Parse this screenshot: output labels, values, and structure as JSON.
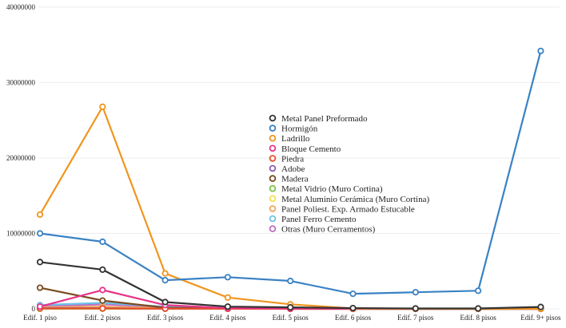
{
  "chart_data": {
    "type": "line",
    "title": "",
    "xlabel": "",
    "ylabel": "",
    "ylim": [
      0,
      40000000
    ],
    "yticks": [
      "0",
      "10000000",
      "20000000",
      "30000000",
      "40000000"
    ],
    "grid": true,
    "legend_position": "center",
    "categories": [
      "Edif. 1 piso",
      "Edif. 2 pisos",
      "Edif. 3 pisos",
      "Edif. 4 pisos",
      "Edif. 5 pisos",
      "Edif. 6 pisos",
      "Edif. 7 pisos",
      "Edif. 8 pisos",
      "Edif. 9+ pisos"
    ],
    "series": [
      {
        "name": "Metal Panel Preformado",
        "color": "#333333",
        "values": [
          6200000,
          5200000,
          900000,
          300000,
          200000,
          100000,
          50000,
          50000,
          250000
        ]
      },
      {
        "name": "Hormigón",
        "color": "#3a82c4",
        "values": [
          10000000,
          8900000,
          3800000,
          4200000,
          3700000,
          2000000,
          2200000,
          2400000,
          34200000
        ]
      },
      {
        "name": "Ladrillo",
        "color": "#f0951e",
        "values": [
          12500000,
          26800000,
          4700000,
          1500000,
          600000,
          50000,
          20000,
          10000,
          20000
        ]
      },
      {
        "name": "Bloque Cemento",
        "color": "#e8348a",
        "values": [
          300000,
          2500000,
          500000,
          100000,
          50000,
          20000,
          10000,
          10000,
          100000
        ]
      },
      {
        "name": "Piedra",
        "color": "#e8502a",
        "values": [
          50000,
          50000,
          30000,
          10000,
          5000,
          0,
          0,
          0,
          0
        ]
      },
      {
        "name": "Adobe",
        "color": "#8a5cb0",
        "values": [
          100000,
          80000,
          20000,
          5000,
          0,
          0,
          0,
          0,
          0
        ]
      },
      {
        "name": "Madera",
        "color": "#7a4a1e",
        "values": [
          2800000,
          1100000,
          150000,
          50000,
          20000,
          5000,
          0,
          0,
          0
        ]
      },
      {
        "name": "Metal Vidrio (Muro Cortina)",
        "color": "#7cc246",
        "values": [
          20000,
          30000,
          20000,
          10000,
          10000,
          5000,
          5000,
          5000,
          20000
        ]
      },
      {
        "name": "Metal Aluminio Cerámica (Muro Cortina)",
        "color": "#f5e04a",
        "values": [
          10000,
          10000,
          10000,
          5000,
          5000,
          0,
          0,
          0,
          10000
        ]
      },
      {
        "name": "Panel Poliest. Exp. Armado Estucable",
        "color": "#f0a860",
        "values": [
          200000,
          300000,
          100000,
          20000,
          10000,
          0,
          0,
          0,
          0
        ]
      },
      {
        "name": "Panel Ferro Cemento",
        "color": "#6cc0e8",
        "values": [
          500000,
          800000,
          300000,
          50000,
          20000,
          0,
          0,
          0,
          0
        ]
      },
      {
        "name": "Otras (Muro Cerramentos)",
        "color": "#c070c0",
        "values": [
          300000,
          600000,
          200000,
          50000,
          20000,
          10000,
          5000,
          5000,
          50000
        ]
      }
    ]
  }
}
